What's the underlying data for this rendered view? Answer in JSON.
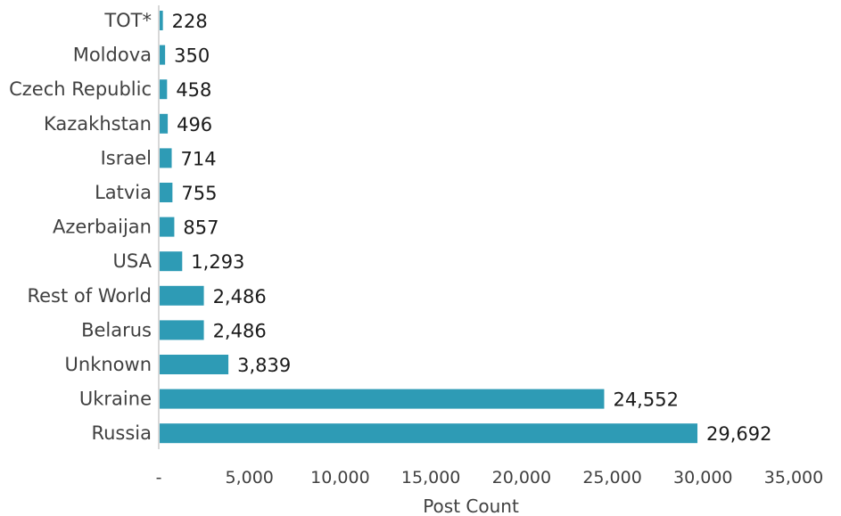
{
  "chart_data": {
    "type": "bar",
    "orientation": "horizontal",
    "categories": [
      "TOT*",
      "Moldova",
      "Czech Republic",
      "Kazakhstan",
      "Israel",
      "Latvia",
      "Azerbaijan",
      "USA",
      "Rest of World",
      "Belarus",
      "Unknown",
      "Ukraine",
      "Russia"
    ],
    "values": [
      228,
      350,
      458,
      496,
      714,
      755,
      857,
      1293,
      2486,
      2486,
      3839,
      24552,
      29692
    ],
    "value_labels": [
      "228",
      "350",
      "458",
      "496",
      "714",
      "755",
      "857",
      "1,293",
      "2,486",
      "2,486",
      "3,839",
      "24,552",
      "29,692"
    ],
    "xlabel": "Post Count",
    "ylabel": "",
    "xlim": [
      0,
      35000
    ],
    "xticks": [
      0,
      5000,
      10000,
      15000,
      20000,
      25000,
      30000,
      35000
    ],
    "xtick_labels": [
      "-",
      "5,000",
      "10,000",
      "15,000",
      "20,000",
      "25,000",
      "30,000",
      "35,000"
    ],
    "bar_color": "#2e9bb5",
    "grid": false
  }
}
